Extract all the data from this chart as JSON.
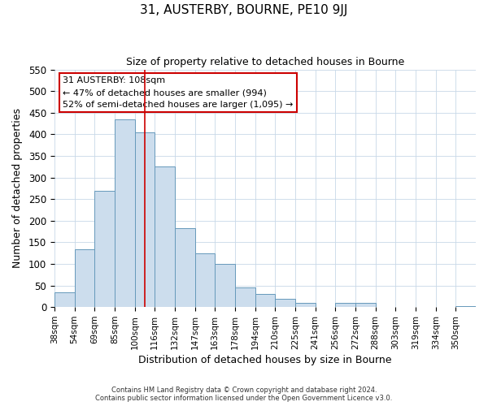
{
  "title": "31, AUSTERBY, BOURNE, PE10 9JJ",
  "subtitle": "Size of property relative to detached houses in Bourne",
  "xlabel": "Distribution of detached houses by size in Bourne",
  "ylabel": "Number of detached properties",
  "footer_line1": "Contains HM Land Registry data © Crown copyright and database right 2024.",
  "footer_line2": "Contains public sector information licensed under the Open Government Licence v3.0.",
  "bin_labels": [
    "38sqm",
    "54sqm",
    "69sqm",
    "85sqm",
    "100sqm",
    "116sqm",
    "132sqm",
    "147sqm",
    "163sqm",
    "178sqm",
    "194sqm",
    "210sqm",
    "225sqm",
    "241sqm",
    "256sqm",
    "272sqm",
    "288sqm",
    "303sqm",
    "319sqm",
    "334sqm",
    "350sqm"
  ],
  "bar_values": [
    35,
    133,
    270,
    435,
    405,
    325,
    183,
    125,
    100,
    45,
    30,
    20,
    10,
    0,
    10,
    10,
    0,
    0,
    0,
    0,
    3
  ],
  "bar_color": "#ccdded",
  "bar_edge_color": "#6699bb",
  "vline_x": 4.5,
  "vline_color": "#cc0000",
  "annotation_title": "31 AUSTERBY: 108sqm",
  "annotation_line1": "← 47% of detached houses are smaller (994)",
  "annotation_line2": "52% of semi-detached houses are larger (1,095) →",
  "annotation_box_color": "#ffffff",
  "annotation_box_edge": "#cc0000",
  "ylim": [
    0,
    550
  ],
  "yticks": [
    0,
    50,
    100,
    150,
    200,
    250,
    300,
    350,
    400,
    450,
    500,
    550
  ],
  "background_color": "#ffffff",
  "grid_color": "#c8d8e8"
}
